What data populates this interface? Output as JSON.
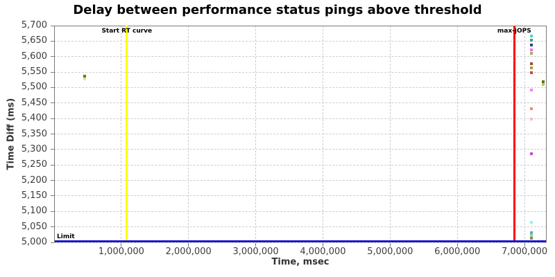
{
  "chart_data": {
    "type": "scatter",
    "title": "Delay between performance status pings above threshold",
    "xlabel": "Time, msec",
    "ylabel": "Time Diff (ms)",
    "xlim": [
      0,
      7330000
    ],
    "ylim": [
      5000,
      5700
    ],
    "grid": "dashed-light-gray",
    "legend": "none",
    "x_ticks": [
      {
        "value": 1000000,
        "label": "1,000,000"
      },
      {
        "value": 2000000,
        "label": "2,000,000"
      },
      {
        "value": 3000000,
        "label": "3,000,000"
      },
      {
        "value": 4000000,
        "label": "4,000,000"
      },
      {
        "value": 5000000,
        "label": "5,000,000"
      },
      {
        "value": 6000000,
        "label": "6,000,000"
      },
      {
        "value": 7000000,
        "label": "7,000,000"
      }
    ],
    "y_ticks": [
      {
        "value": 5000,
        "label": "5,000"
      },
      {
        "value": 5050,
        "label": "5,050"
      },
      {
        "value": 5100,
        "label": "5,100"
      },
      {
        "value": 5150,
        "label": "5,150"
      },
      {
        "value": 5200,
        "label": "5,200"
      },
      {
        "value": 5250,
        "label": "5,250"
      },
      {
        "value": 5300,
        "label": "5,300"
      },
      {
        "value": 5350,
        "label": "5,350"
      },
      {
        "value": 5400,
        "label": "5,400"
      },
      {
        "value": 5450,
        "label": "5,450"
      },
      {
        "value": 5500,
        "label": "5,500"
      },
      {
        "value": 5550,
        "label": "5,550"
      },
      {
        "value": 5600,
        "label": "5,600"
      },
      {
        "value": 5650,
        "label": "5,650"
      },
      {
        "value": 5700,
        "label": "5,700"
      }
    ],
    "annotations": {
      "vlines": [
        {
          "x": 1082000,
          "label": "Start RT curve",
          "color": "#ffff00"
        },
        {
          "x": 6848000,
          "label": "max-jOPS",
          "color": "#fe0000"
        }
      ],
      "hlines": [
        {
          "y": 5000,
          "label": "Limit",
          "color": "#1a1acd"
        }
      ]
    },
    "points": [
      {
        "x": 450000,
        "y": 5536,
        "color": "#6f7d05"
      },
      {
        "x": 450000,
        "y": 5528,
        "color": "#d8ea96"
      },
      {
        "x": 7100000,
        "y": 5667,
        "color": "#45d8cd"
      },
      {
        "x": 7100000,
        "y": 5653,
        "color": "#43a457"
      },
      {
        "x": 7100000,
        "y": 5637,
        "color": "#31409b"
      },
      {
        "x": 7100000,
        "y": 5621,
        "color": "#ef6eec"
      },
      {
        "x": 7100000,
        "y": 5611,
        "color": "#ada763"
      },
      {
        "x": 7100000,
        "y": 5578,
        "color": "#9e4a41"
      },
      {
        "x": 7100000,
        "y": 5564,
        "color": "#a6a233"
      },
      {
        "x": 7100000,
        "y": 5549,
        "color": "#c44747"
      },
      {
        "x": 7280000,
        "y": 5519,
        "color": "#5d7a1e"
      },
      {
        "x": 7280000,
        "y": 5509,
        "color": "#a9cf55"
      },
      {
        "x": 7100000,
        "y": 5491,
        "color": "#f683e9"
      },
      {
        "x": 7100000,
        "y": 5431,
        "color": "#ef8585"
      },
      {
        "x": 7100000,
        "y": 5398,
        "color": "#f6bcbe"
      },
      {
        "x": 7100000,
        "y": 5287,
        "color": "#cc46cc"
      },
      {
        "x": 7100000,
        "y": 5064,
        "color": "#90f2f2"
      },
      {
        "x": 7100000,
        "y": 5031,
        "color": "#6f97ef"
      },
      {
        "x": 7100000,
        "y": 5022,
        "color": "#7fe97d"
      },
      {
        "x": 7100000,
        "y": 5013,
        "color": "#9b7b6b"
      }
    ]
  }
}
